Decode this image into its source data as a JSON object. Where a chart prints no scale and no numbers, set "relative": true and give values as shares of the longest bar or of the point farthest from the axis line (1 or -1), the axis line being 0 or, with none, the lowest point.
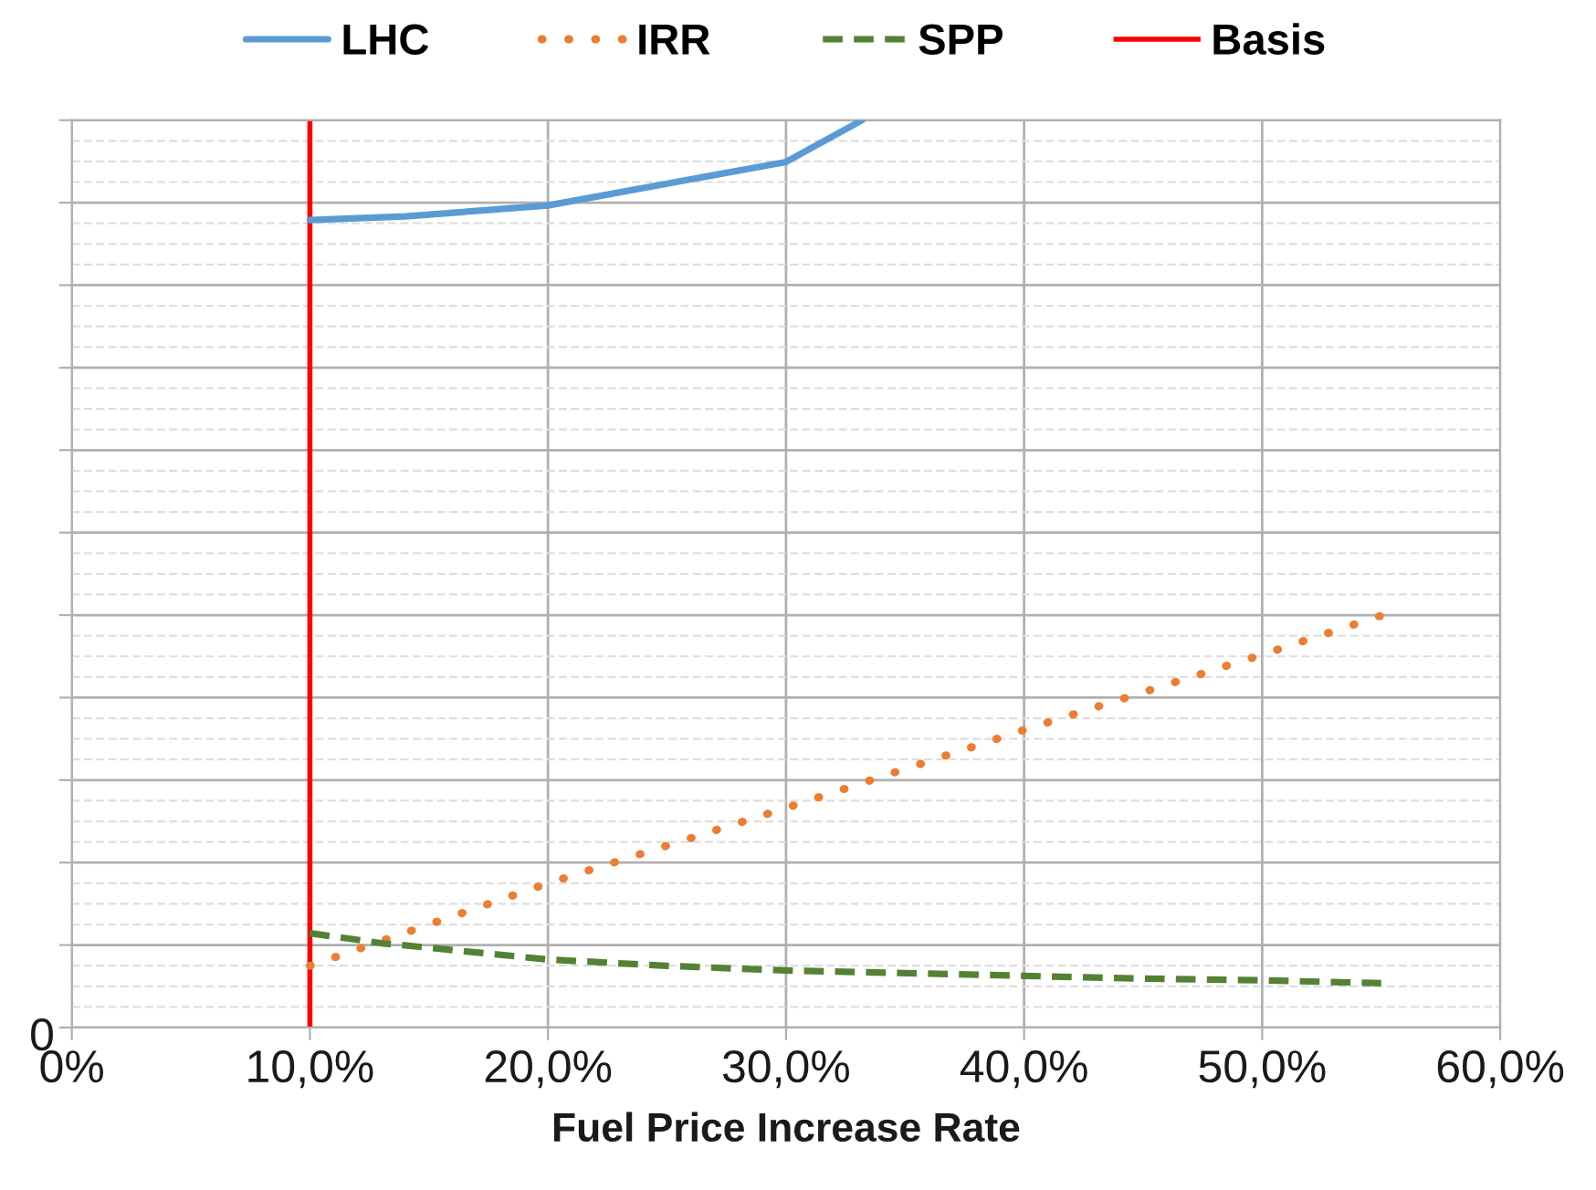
{
  "chart_data": {
    "type": "line",
    "relative": true,
    "xlabel": "Fuel Price Increase Rate",
    "xlim": [
      0,
      60
    ],
    "xticks": [
      {
        "value": 0,
        "label": "0%"
      },
      {
        "value": 10,
        "label": "10,0%"
      },
      {
        "value": 20,
        "label": "20,0%"
      },
      {
        "value": 30,
        "label": "30,0%"
      },
      {
        "value": 40,
        "label": "40,0%"
      },
      {
        "value": 50,
        "label": "50,0%"
      },
      {
        "value": 60,
        "label": "60,0%"
      }
    ],
    "annotations": [
      "0"
    ],
    "grid": true,
    "legend": "top",
    "series": [
      {
        "name": "LHC",
        "color": "#5b9bd5",
        "line_style": "solid",
        "x": [
          10,
          14,
          20,
          30,
          33.2
        ],
        "values": [
          0.89,
          0.894,
          0.906,
          0.954,
          1.0
        ]
      },
      {
        "name": "IRR",
        "color": "#ed7d31",
        "line_style": "dotted",
        "x": [
          10,
          20,
          30,
          40,
          50,
          55
        ],
        "values": [
          0.068,
          0.159,
          0.242,
          0.328,
          0.411,
          0.454
        ]
      },
      {
        "name": "SPP",
        "color": "#548235",
        "line_style": "dashed",
        "x": [
          10,
          13,
          15,
          20,
          25,
          30,
          35,
          40,
          45,
          50,
          55
        ],
        "values": [
          0.104,
          0.093,
          0.088,
          0.075,
          0.068,
          0.063,
          0.06,
          0.057,
          0.054,
          0.052,
          0.049
        ]
      }
    ],
    "ref_lines": [
      {
        "axis": "x",
        "value": 10,
        "label": "Basis",
        "color": "#ff0000",
        "line_style": "solid"
      }
    ]
  }
}
